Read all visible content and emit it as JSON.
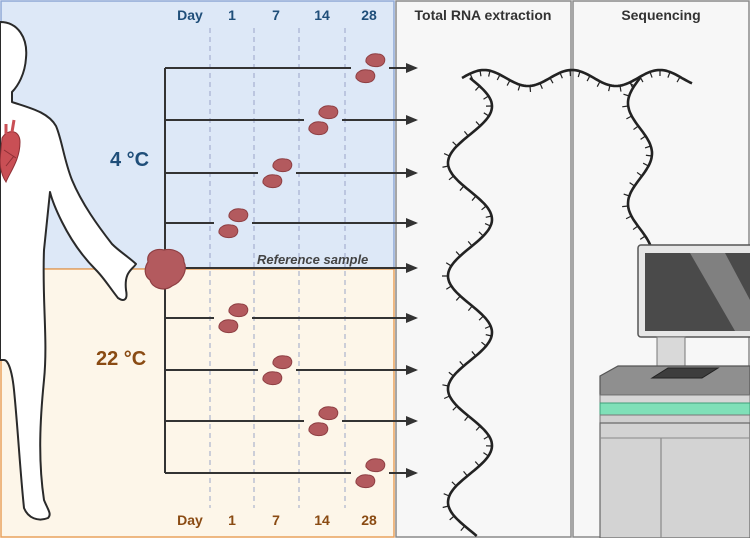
{
  "days_header": {
    "label": "Day",
    "days": [
      "1",
      "7",
      "14",
      "28"
    ]
  },
  "panels": {
    "extraction": "Total RNA extraction",
    "sequencing": "Sequencing"
  },
  "conditions": {
    "cold": {
      "label": "4 °C",
      "color": "#1f4e79",
      "bg": "#dde8f7",
      "border": "#8fa8d6"
    },
    "warm": {
      "label": "22 °C",
      "color": "#8a4b13",
      "bg": "#fdf6e9",
      "border": "#e9a25d"
    }
  },
  "reference": {
    "label": "Reference sample"
  },
  "branches": {
    "cold": [
      {
        "day": "28"
      },
      {
        "day": "14"
      },
      {
        "day": "7"
      },
      {
        "day": "1"
      }
    ],
    "warm": [
      {
        "day": "1"
      },
      {
        "day": "7"
      },
      {
        "day": "14"
      },
      {
        "day": "28"
      }
    ]
  },
  "colors": {
    "tissue": "#b35a5e",
    "tissue_dark": "#8e3f43",
    "heart": "#c94f55",
    "line": "#333333",
    "panel_bg": "#f7f7f7",
    "accent_green": "#7fe0b8"
  },
  "icons": {
    "body": "human-silhouette-icon",
    "heart": "heart-icon",
    "sequencer": "sequencer-icon",
    "rna": "rna-strand-icon"
  }
}
